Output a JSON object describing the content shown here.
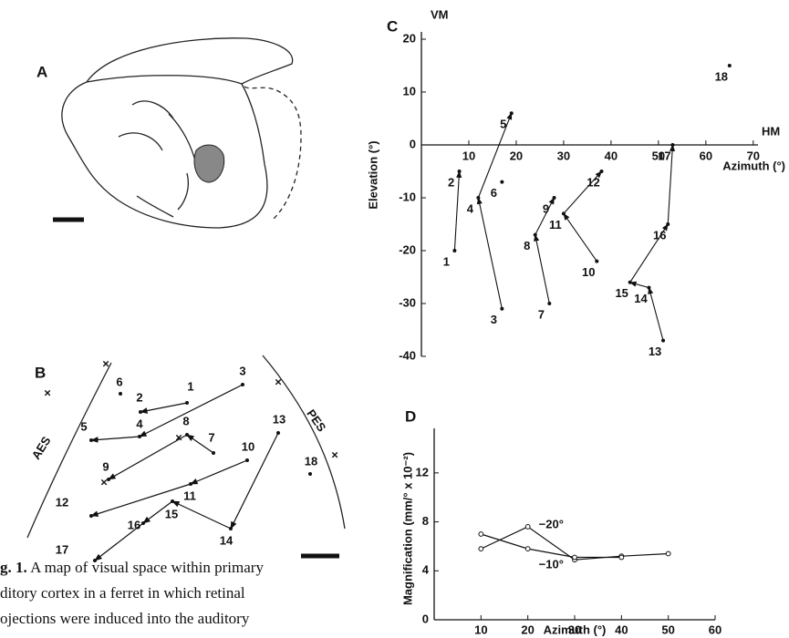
{
  "panel_labels": [
    "A",
    "B",
    "C",
    "D"
  ],
  "panel_b": {
    "points": [
      "1",
      "2",
      "3",
      "4",
      "5",
      "6",
      "7",
      "8",
      "9",
      "10",
      "11",
      "12",
      "13",
      "14",
      "15",
      "16",
      "17",
      "18"
    ],
    "sulci": [
      "AES",
      "PES"
    ]
  },
  "caption": {
    "label": "g. 1.",
    "lines": [
      "A map of visual space within primary",
      "ditory cortex in a ferret in which retinal",
      "ojections were induced into the auditory"
    ]
  },
  "chart_data": [
    {
      "type": "scatter",
      "vertical_label": "VM",
      "horizontal_label": "HM",
      "y_label": "Elevation (°)",
      "x_label": "Azimuth (°)",
      "point_labels": [
        "1",
        "2",
        "3",
        "4",
        "5",
        "6",
        "7",
        "8",
        "9",
        "10",
        "11",
        "12",
        "13",
        "14",
        "15",
        "16",
        "17",
        "18"
      ],
      "x": [
        7,
        8,
        17,
        12,
        19,
        17,
        27,
        24,
        28,
        37,
        30,
        38,
        51,
        48,
        44,
        52,
        53,
        65
      ],
      "values": [
        -20,
        -5,
        -31,
        -10,
        6,
        -7,
        -30,
        -17,
        -10,
        -22,
        -13,
        -5,
        -37,
        -27,
        -26,
        -15,
        0,
        15
      ],
      "xlim": [
        0,
        71
      ],
      "ylim": [
        -40,
        20
      ],
      "xticks": [
        10,
        20,
        30,
        40,
        50,
        60,
        70
      ],
      "yticks": [
        20,
        10,
        0,
        -10,
        -20,
        -30,
        -40
      ]
    },
    {
      "type": "line",
      "y_label": "Magnification (mm/° x 10⁻²)",
      "x_label": "Azimuth (°)",
      "x": [
        10,
        20,
        30,
        40,
        50
      ],
      "series": [
        {
          "name": "−20°",
          "values": [
            5.8,
            7.6,
            4.9,
            5.2,
            5.4
          ]
        },
        {
          "name": "−10°",
          "values": [
            7,
            5.8,
            5.1,
            5.1,
            null
          ]
        }
      ],
      "xlim": [
        0,
        60
      ],
      "ylim": [
        0,
        14
      ],
      "xticks": [
        0,
        10,
        20,
        30,
        40,
        50,
        60
      ],
      "yticks": [
        0,
        4,
        8,
        12
      ]
    }
  ]
}
